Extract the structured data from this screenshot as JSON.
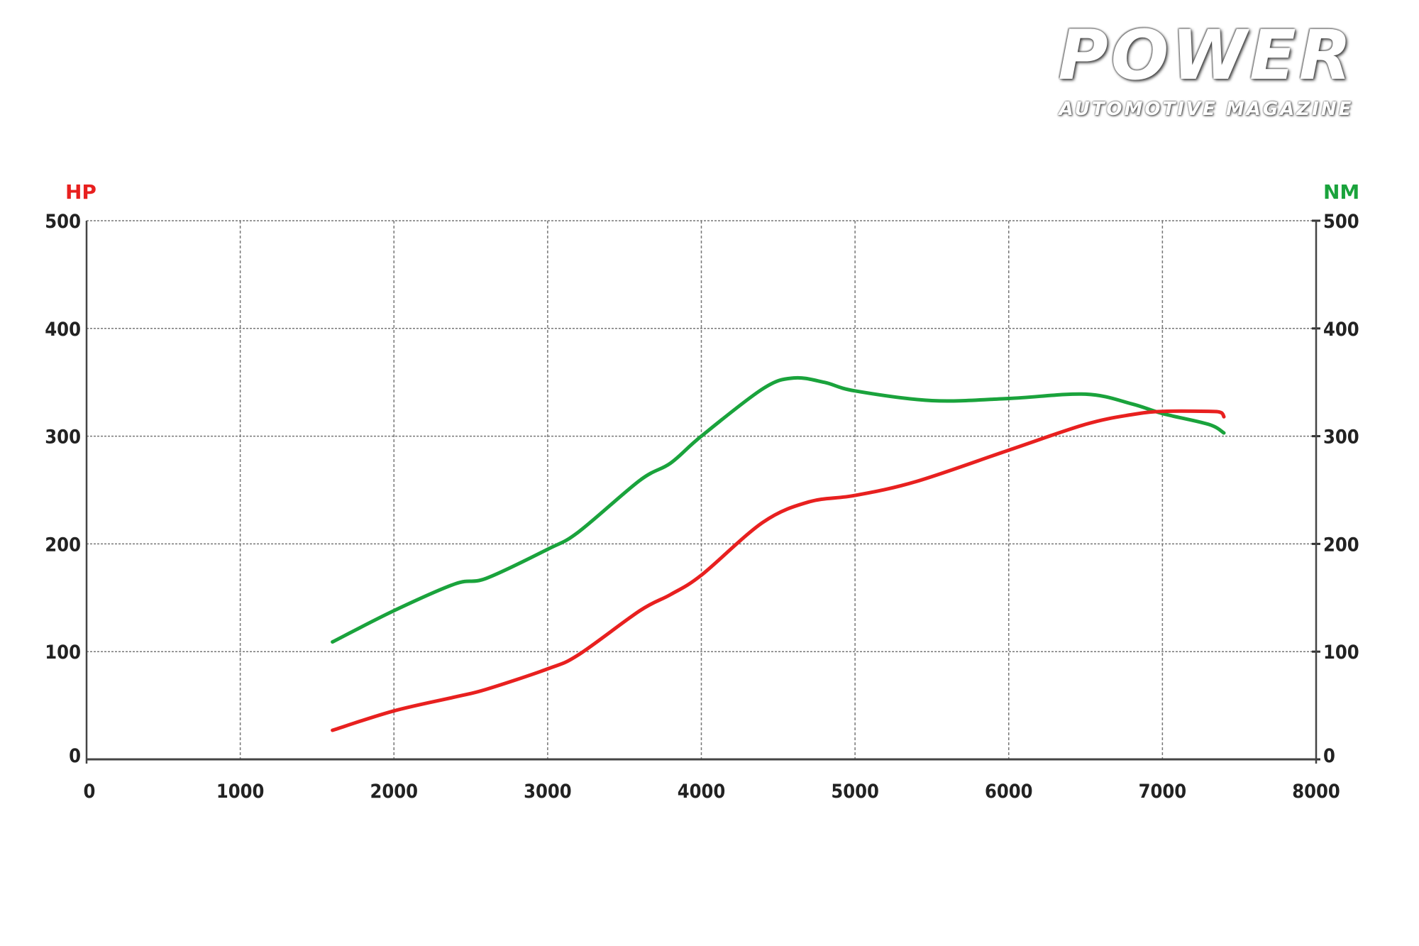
{
  "logo": {
    "title": "POWER",
    "subtitle": "AUTOMOTIVE MAGAZINE"
  },
  "chart_data": {
    "type": "line",
    "title": "",
    "xlabel": "",
    "ylabel_left": "HP",
    "ylabel_right": "NM",
    "xlim": [
      0,
      8000
    ],
    "ylim_left": [
      0,
      500
    ],
    "ylim_right": [
      0,
      500
    ],
    "x_ticks": [
      "0",
      "1000",
      "2000",
      "3000",
      "4000",
      "5000",
      "6000",
      "7000",
      "8000"
    ],
    "y_ticks_left": [
      "0",
      "100",
      "200",
      "300",
      "400",
      "500"
    ],
    "y_ticks_right": [
      "0",
      "100",
      "200",
      "300",
      "400",
      "500"
    ],
    "grid": true,
    "colors": {
      "hp": "#e8201f",
      "nm": "#1aa33c",
      "left_label": "#e8201f",
      "right_label": "#1aa33c"
    },
    "series": [
      {
        "key": "nm",
        "axis": "right",
        "color": "#1aa33c",
        "x": [
          1600,
          2000,
          2400,
          2600,
          3000,
          3200,
          3600,
          3800,
          4000,
          4400,
          4600,
          4800,
          5000,
          5500,
          6000,
          6500,
          6800,
          7000,
          7300,
          7400
        ],
        "y": [
          109,
          138,
          163,
          168,
          195,
          211,
          259,
          275,
          300,
          344,
          354,
          350,
          342,
          333,
          335,
          339,
          330,
          321,
          311,
          303
        ]
      },
      {
        "key": "hp",
        "axis": "left",
        "color": "#e8201f",
        "x": [
          1600,
          2000,
          2400,
          2600,
          3000,
          3200,
          3600,
          3800,
          4000,
          4400,
          4700,
          5000,
          5400,
          6000,
          6500,
          6800,
          7000,
          7300,
          7380,
          7400
        ],
        "y": [
          27,
          45,
          58,
          65,
          84,
          97,
          138,
          153,
          171,
          220,
          239,
          245,
          258,
          287,
          311,
          320,
          323,
          323,
          322,
          318
        ]
      }
    ]
  }
}
